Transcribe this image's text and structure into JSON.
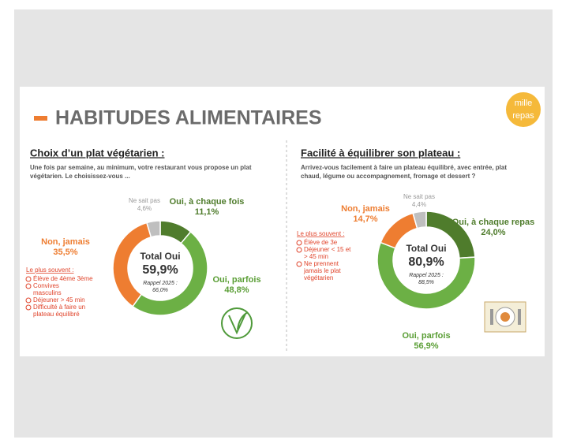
{
  "header": {
    "title": "HABITUDES ALIMENTAIRES",
    "logo": [
      "mille",
      "repas"
    ]
  },
  "chart_data": [
    {
      "type": "pie",
      "donut": true,
      "title": "Choix d’un plat végétarien :",
      "subtitle": [
        "Une fois par semaine, au minimum, votre restaurant vous propose un plat",
        "végétarien. Le choisissez-vous ..."
      ],
      "categories": [
        "Oui, à chaque fois",
        "Oui, parfois",
        "Non, jamais",
        "Ne sait pas"
      ],
      "values": [
        11.1,
        48.8,
        35.5,
        4.6
      ],
      "value_labels": [
        "11,1%",
        "48,8%",
        "35,5%",
        "4,6%"
      ],
      "colors": [
        "#4f7c2c",
        "#6cb045",
        "#ee7d31",
        "#bfbfbf"
      ],
      "center_title": "Total Oui",
      "center_value": "59,9%",
      "center_note": [
        "Rappel 2025 :",
        "66,0%"
      ],
      "note_title": "Le plus souvent :",
      "notes": [
        [
          "Élève de 4ème 3ème"
        ],
        [
          "Convives",
          "masculins"
        ],
        [
          "Déjeuner > 45 min"
        ],
        [
          "Difficulté à faire un",
          "plateau équilibré"
        ]
      ]
    },
    {
      "type": "pie",
      "donut": true,
      "title": "Facilité à équilibrer son plateau :",
      "subtitle": [
        "Arrivez-vous facilement à faire un plateau équilibré, avec entrée, plat",
        "chaud, légume ou accompagnement, fromage et dessert ?"
      ],
      "categories": [
        "Oui, à chaque repas",
        "Oui, parfois",
        "Non, jamais",
        "Ne sait pas"
      ],
      "values": [
        24.0,
        56.9,
        14.7,
        4.4
      ],
      "value_labels": [
        "24,0%",
        "56,9%",
        "14,7%",
        "4,4%"
      ],
      "colors": [
        "#4f7c2c",
        "#6cb045",
        "#ee7d31",
        "#bfbfbf"
      ],
      "center_title": "Total Oui",
      "center_value": "80,9%",
      "center_note": [
        "Rappel 2025 :",
        "88,5%"
      ],
      "note_title": "Le plus souvent :",
      "notes": [
        [
          "Élève de 3e"
        ],
        [
          "Déjeuner < 15 et",
          "> 45 min"
        ],
        [
          "Ne prennent",
          "jamais le plat",
          "végétarien"
        ]
      ]
    }
  ]
}
